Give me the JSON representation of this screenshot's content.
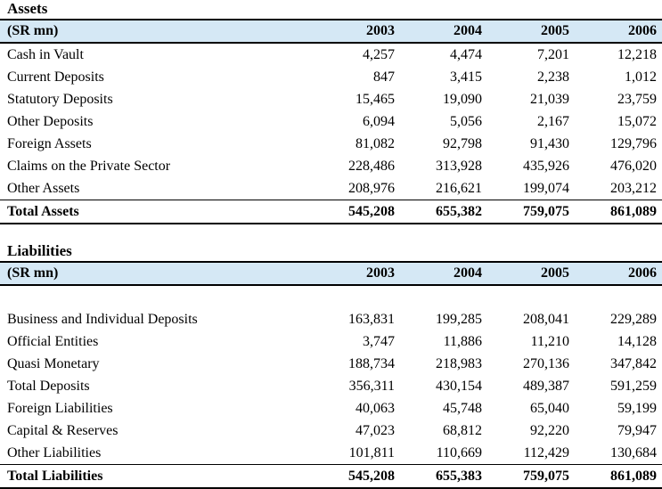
{
  "document": {
    "background": "#ffffff",
    "text_color": "#000000",
    "header_bg": "#d5e8f5",
    "border_color": "#000000"
  },
  "tables": [
    {
      "title": "Assets",
      "unit_label": "(SR mn)",
      "years": [
        "2003",
        "2004",
        "2005",
        "2006"
      ],
      "blank_row_after_header": false,
      "rows": [
        {
          "label": "Cash in Vault",
          "values": [
            "4,257",
            "4,474",
            "7,201",
            "12,218"
          ]
        },
        {
          "label": "Current Deposits",
          "values": [
            "847",
            "3,415",
            "2,238",
            "1,012"
          ]
        },
        {
          "label": "Statutory Deposits",
          "values": [
            "15,465",
            "19,090",
            "21,039",
            "23,759"
          ]
        },
        {
          "label": "Other Deposits",
          "values": [
            "6,094",
            "5,056",
            "2,167",
            "15,072"
          ]
        },
        {
          "label": "Foreign Assets",
          "values": [
            "81,082",
            "92,798",
            "91,430",
            "129,796"
          ]
        },
        {
          "label": "Claims on the Private Sector",
          "values": [
            "228,486",
            "313,928",
            "435,926",
            "476,020"
          ]
        },
        {
          "label": "Other Assets",
          "values": [
            "208,976",
            "216,621",
            "199,074",
            "203,212"
          ]
        }
      ],
      "total": {
        "label": "Total Assets",
        "values": [
          "545,208",
          "655,382",
          "759,075",
          "861,089"
        ]
      }
    },
    {
      "title": "Liabilities",
      "unit_label": "(SR mn)",
      "years": [
        "2003",
        "2004",
        "2005",
        "2006"
      ],
      "blank_row_after_header": true,
      "rows": [
        {
          "label": "Business and Individual Deposits",
          "values": [
            "163,831",
            "199,285",
            "208,041",
            "229,289"
          ]
        },
        {
          "label": "Official Entities",
          "values": [
            "3,747",
            "11,886",
            "11,210",
            "14,128"
          ]
        },
        {
          "label": "Quasi Monetary",
          "values": [
            "188,734",
            "218,983",
            "270,136",
            "347,842"
          ]
        },
        {
          "label": "Total Deposits",
          "values": [
            "356,311",
            "430,154",
            "489,387",
            "591,259"
          ]
        },
        {
          "label": "Foreign Liabilities",
          "values": [
            "40,063",
            "45,748",
            "65,040",
            "59,199"
          ]
        },
        {
          "label": "Capital & Reserves",
          "values": [
            "47,023",
            "68,812",
            "92,220",
            "79,947"
          ]
        },
        {
          "label": "Other Liabilities",
          "values": [
            "101,811",
            "110,669",
            "112,429",
            "130,684"
          ]
        }
      ],
      "total": {
        "label": "Total Liabilities",
        "values": [
          "545,208",
          "655,383",
          "759,075",
          "861,089"
        ]
      }
    }
  ]
}
